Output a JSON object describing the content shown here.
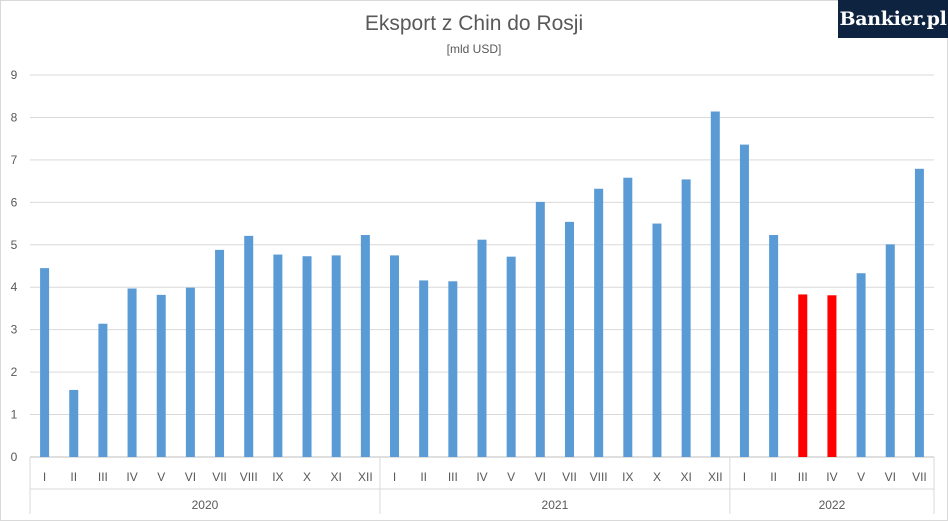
{
  "logo": {
    "text": "Bankier.pl"
  },
  "chart_data": {
    "type": "bar",
    "title": "Eksport z Chin do Rosji",
    "subtitle": "[mld USD]",
    "xlabel": "",
    "ylabel": "",
    "ylim": [
      0,
      9
    ],
    "yticks": [
      0,
      1,
      2,
      3,
      4,
      5,
      6,
      7,
      8,
      9
    ],
    "grid": true,
    "legend": "none",
    "colors": {
      "default": "#5b9bd5",
      "highlight": "#ff0000"
    },
    "groups": [
      {
        "label": "2020",
        "count": 12
      },
      {
        "label": "2021",
        "count": 12
      },
      {
        "label": "2022",
        "count": 7
      }
    ],
    "categories": [
      "I",
      "II",
      "III",
      "IV",
      "V",
      "VI",
      "VII",
      "VIII",
      "IX",
      "X",
      "XI",
      "XII",
      "I",
      "II",
      "III",
      "IV",
      "V",
      "VI",
      "VII",
      "VIII",
      "IX",
      "X",
      "XI",
      "XII",
      "I",
      "II",
      "III",
      "IV",
      "V",
      "VI",
      "VII"
    ],
    "values": [
      4.45,
      1.58,
      3.14,
      3.97,
      3.82,
      3.99,
      4.88,
      5.21,
      4.77,
      4.73,
      4.75,
      5.23,
      4.75,
      4.16,
      4.14,
      5.12,
      4.72,
      6.01,
      5.54,
      6.32,
      6.58,
      5.5,
      6.54,
      8.14,
      7.36,
      5.23,
      3.83,
      3.81,
      4.33,
      5.01,
      6.79
    ],
    "highlight": [
      false,
      false,
      false,
      false,
      false,
      false,
      false,
      false,
      false,
      false,
      false,
      false,
      false,
      false,
      false,
      false,
      false,
      false,
      false,
      false,
      false,
      false,
      false,
      false,
      false,
      false,
      true,
      true,
      false,
      false,
      false
    ]
  }
}
